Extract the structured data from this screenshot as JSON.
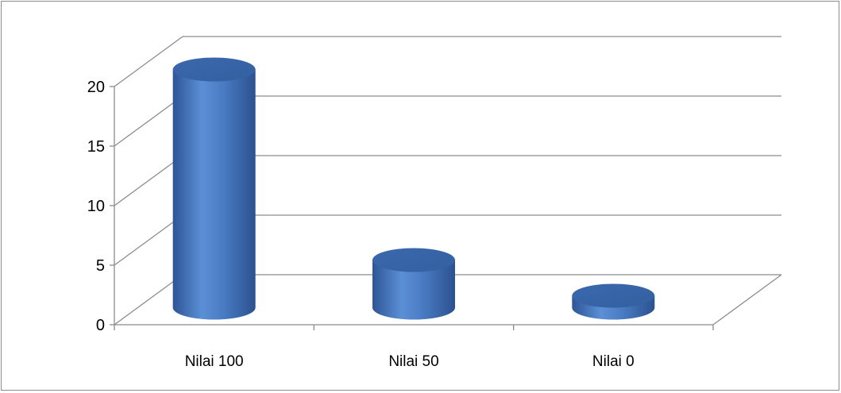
{
  "chart_data": {
    "type": "bar",
    "style": "3d-cylinder",
    "categories": [
      "Nilai 100",
      "Nilai 50",
      "Nilai 0"
    ],
    "values": [
      20,
      4,
      1
    ],
    "ylim": [
      0,
      20
    ],
    "yticks": [
      "0",
      "5",
      "10",
      "15",
      "20"
    ],
    "title": "",
    "xlabel": "",
    "ylabel": "",
    "grid": true,
    "legend": false,
    "colors": {
      "bar_side": "#4a7cc4",
      "bar_top": "#3a67ad",
      "gridline": "#8c8c8c",
      "axis": "#8c8c8c"
    }
  }
}
